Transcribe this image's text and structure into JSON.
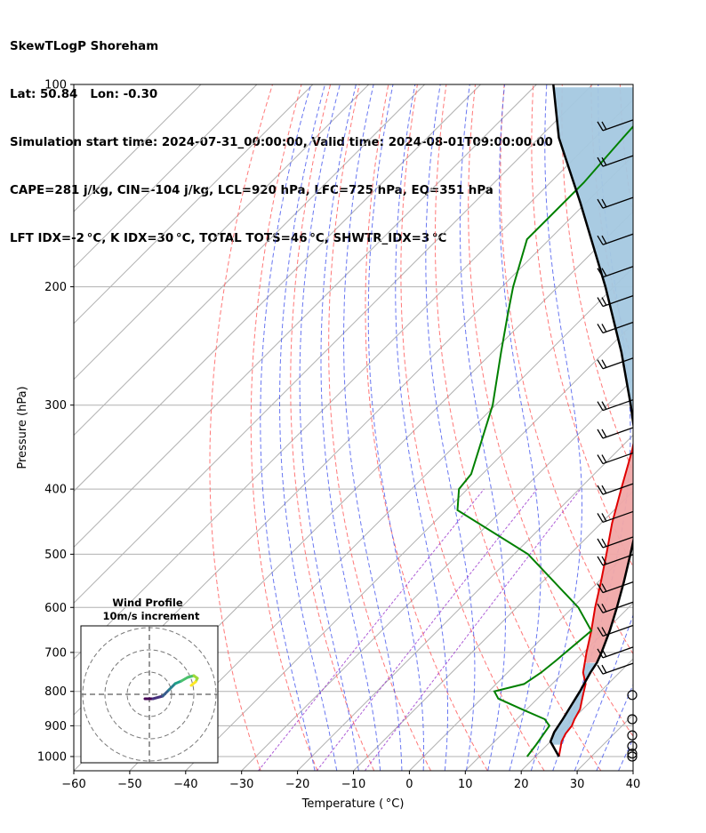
{
  "header": {
    "line1": "SkewTLogP Shoreham",
    "line2": "Lat: 50.84   Lon: -0.30",
    "line3": "Simulation start time: 2024-07-31_00:00:00, Valid time: 2024-08-01T09:00:00.00",
    "line4": "CAPE=281 j/kg, CIN=-104 j/kg, LCL=920 hPa, LFC=725 hPa, EQ=351 hPa",
    "line5": "LFT IDX=-2 °C, K IDX=30 °C, TOTAL TOTS=46 °C, SHWTR_IDX=3 °C"
  },
  "chart_data": {
    "type": "skewt",
    "xlabel": "Temperature ( °C)",
    "ylabel": "Pressure (hPa)",
    "xlim": [
      -60,
      40
    ],
    "ylim": [
      1050,
      100
    ],
    "x_ticks": [
      -60,
      -50,
      -40,
      -30,
      -20,
      -10,
      0,
      10,
      20,
      30,
      40
    ],
    "x_tick_labels": [
      "−60",
      "−50",
      "−40",
      "−30",
      "−20",
      "−10",
      "0",
      "10",
      "20",
      "30",
      "40"
    ],
    "y_ticks": [
      1000,
      900,
      800,
      700,
      600,
      500,
      400,
      300,
      200,
      100
    ],
    "y_tick_labels": [
      "1000",
      "900",
      "800",
      "700",
      "600",
      "500",
      "400",
      "300",
      "200",
      "100"
    ],
    "grid": true,
    "temperature": {
      "color": "#e00000",
      "p": [
        1000,
        950,
        925,
        900,
        880,
        850,
        820,
        800,
        780,
        750,
        700,
        650,
        600,
        550,
        500,
        450,
        400,
        350,
        300,
        270,
        250,
        235,
        220,
        205,
        195,
        182,
        170,
        150,
        135,
        120,
        110,
        100
      ],
      "t": [
        24.2,
        22.0,
        21.3,
        21.0,
        20.3,
        19.5,
        18.0,
        17.0,
        16.0,
        13.5,
        10.5,
        7.5,
        4.0,
        0.5,
        -3.5,
        -8.0,
        -12.5,
        -17.5,
        -24.0,
        -28.5,
        -32.5,
        -36.5,
        -38.8,
        -40.5,
        -41.5,
        -43.0,
        -46.8,
        -52.5,
        -57.0,
        -62.5,
        -66.0,
        -70.0
      ]
    },
    "dewpoint": {
      "color": "#008000",
      "p": [
        1000,
        960,
        900,
        880,
        850,
        820,
        800,
        780,
        750,
        720,
        650,
        600,
        500,
        430,
        400,
        380,
        340,
        300,
        250,
        220,
        200,
        170,
        140,
        120,
        100
      ],
      "td": [
        18.5,
        18.0,
        17.0,
        15.0,
        9.0,
        3.0,
        1.0,
        5.0,
        6.0,
        6.5,
        7.5,
        1.0,
        -17.5,
        -38.0,
        -41.5,
        -42.0,
        -46.0,
        -50.5,
        -58.5,
        -64.0,
        -68.0,
        -74.0,
        -74.0,
        -75.0,
        -76.0
      ]
    },
    "parcel": {
      "color": "#000000",
      "p": [
        1000,
        950,
        920,
        880,
        850,
        800,
        750,
        725,
        700,
        650,
        600,
        550,
        500,
        450,
        400,
        351,
        300,
        250,
        200,
        150,
        120,
        100
      ],
      "t": [
        24.2,
        20.0,
        19.0,
        18.2,
        17.5,
        16.3,
        14.8,
        14.2,
        13.2,
        10.8,
        7.9,
        4.6,
        0.8,
        -3.5,
        -9.3,
        -16.5,
        -25.8,
        -37.0,
        -51.5,
        -71.0,
        -86.5,
        -97.0
      ]
    },
    "cape_shading": {
      "color": "#a4c8e0",
      "from_hpa": 725,
      "to_hpa": 351
    },
    "cin_shading": {
      "color": "#f0a8a8",
      "from_hpa": 351,
      "to_hpa": 100
    },
    "wind_barbs": {
      "p": [
        1000,
        990,
        965,
        930,
        880,
        810,
        740,
        700,
        650,
        600,
        560,
        510,
        480,
        440,
        400,
        360,
        330,
        300,
        260,
        230,
        210,
        190,
        170,
        150,
        130,
        115
      ],
      "label_note": ""
    },
    "inset": {
      "title": "Wind Profile",
      "subtitle": "10m/s increment",
      "rings": 3
    }
  }
}
